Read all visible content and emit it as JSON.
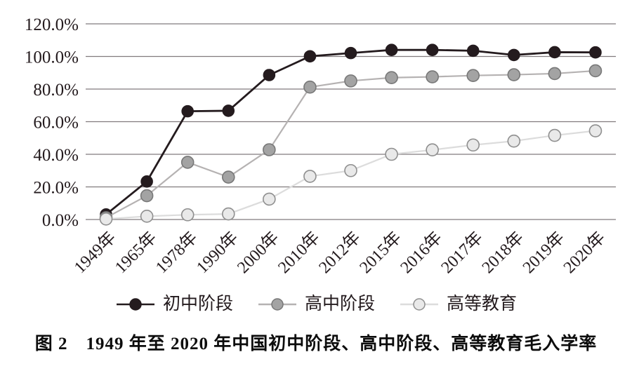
{
  "figure": {
    "caption": "图 2　1949 年至 2020 年中国初中阶段、高中阶段、高等教育毛入学率"
  },
  "chart_data": {
    "type": "line",
    "title": "",
    "xlabel": "",
    "ylabel": "",
    "categories": [
      "1949年",
      "1965年",
      "1978年",
      "1990年",
      "2000年",
      "2010年",
      "2012年",
      "2015年",
      "2016年",
      "2017年",
      "2018年",
      "2019年",
      "2020年"
    ],
    "series": [
      {
        "name": "初中阶段",
        "values": [
          3.1,
          23.3,
          66.4,
          66.7,
          88.6,
          100.1,
          102.1,
          104.0,
          104.0,
          103.5,
          100.9,
          102.6,
          102.5
        ],
        "line_color": "#241b1e",
        "marker_fill": "#241b1e",
        "marker_stroke": "#241b1e"
      },
      {
        "name": "高中阶段",
        "values": [
          1.1,
          14.6,
          35.1,
          26.0,
          42.8,
          81.2,
          85.0,
          87.0,
          87.5,
          88.3,
          88.8,
          89.5,
          91.2
        ],
        "line_color": "#b5b2b2",
        "marker_fill": "#a3a3a3",
        "marker_stroke": "#787878"
      },
      {
        "name": "高等教育",
        "values": [
          0.3,
          2.0,
          2.9,
          3.4,
          12.5,
          26.5,
          30.0,
          40.0,
          42.7,
          45.7,
          48.1,
          51.6,
          54.4
        ],
        "line_color": "#dcdcdc",
        "marker_fill": "#e9e9e9",
        "marker_stroke": "#8f8f8f"
      }
    ],
    "y_ticks": [
      {
        "value": 0,
        "label": "0.0%"
      },
      {
        "value": 20,
        "label": "20.0%"
      },
      {
        "value": 40,
        "label": "40.0%"
      },
      {
        "value": 60,
        "label": "60.0%"
      },
      {
        "value": 80,
        "label": "80.0%"
      },
      {
        "value": 100,
        "label": "100.0%"
      },
      {
        "value": 120,
        "label": "120.0%"
      }
    ],
    "ylim": [
      0,
      120
    ],
    "grid": true,
    "legend_position": "bottom",
    "axis_color": "#817b7d",
    "tick_label_color": "#231a1d"
  }
}
